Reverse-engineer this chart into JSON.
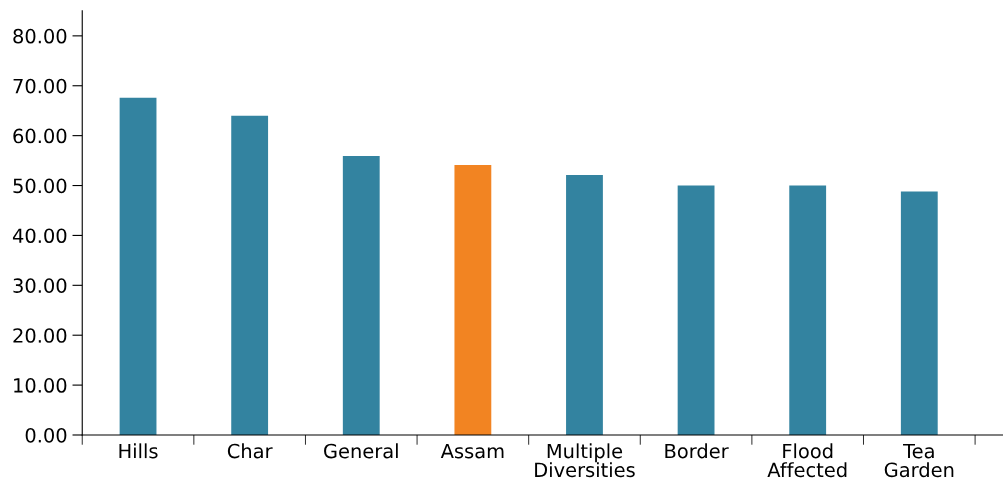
{
  "chart_data": {
    "type": "bar",
    "categories": [
      "Hills",
      "Char",
      "General",
      "Assam",
      "Multiple\nDiversities",
      "Border",
      "Flood\nAffected",
      "Tea\nGarden"
    ],
    "values": [
      67.6,
      64.0,
      55.9,
      54.1,
      52.1,
      50.0,
      50.0,
      48.8
    ],
    "colors": [
      "#3383a0",
      "#3383a0",
      "#3383a0",
      "#f28422",
      "#3383a0",
      "#3383a0",
      "#3383a0",
      "#3383a0"
    ],
    "ylim": [
      0,
      85
    ],
    "yticks": [
      {
        "value": 0,
        "label": "0.00"
      },
      {
        "value": 10,
        "label": "10.00"
      },
      {
        "value": 20,
        "label": "20.00"
      },
      {
        "value": 30,
        "label": "30.00"
      },
      {
        "value": 40,
        "label": "40.00"
      },
      {
        "value": 50,
        "label": "50.00"
      },
      {
        "value": 60,
        "label": "60.00"
      },
      {
        "value": 70,
        "label": "70.00"
      },
      {
        "value": 80,
        "label": "80.00"
      }
    ],
    "grid": false,
    "legend": false
  }
}
